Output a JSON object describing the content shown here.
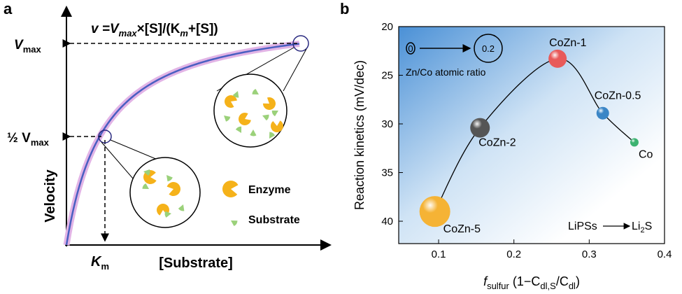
{
  "diagram": {
    "panel_label": "a",
    "equation": [
      "v",
      " =V",
      "max",
      "×[S]/(K",
      "m",
      "+[S])"
    ],
    "vmax_label": [
      "V",
      "max"
    ],
    "half_vmax_label": [
      "½ V",
      "max"
    ],
    "y_axis_label": "Velocity",
    "x_axis_label": "[Substrate]",
    "km_label": [
      "K",
      "m"
    ],
    "legend": [
      "Enzyme",
      "Substrate"
    ]
  },
  "chart_data": {
    "type": "scatter",
    "panel_label": "b",
    "y_axis_label": "Reaction kinetics (mV/dec)",
    "x_axis_label": [
      "f",
      "sulfur",
      " (1−C",
      "dl,S",
      "/C",
      "dl",
      ")"
    ],
    "categories": [
      "CoZn-5",
      "CoZn-2",
      "CoZn-1",
      "CoZn-0.5",
      "Co"
    ],
    "x": [
      0.095,
      0.155,
      0.258,
      0.318,
      0.36
    ],
    "values": [
      39.0,
      30.4,
      23.3,
      28.9,
      31.9
    ],
    "colors": [
      "#f5b335",
      "#555555",
      "#e85a5a",
      "#3b86c6",
      "#3cb371"
    ],
    "label_colors": [
      "#f08a24",
      "#444444",
      "#e8474d",
      "#3b86c6",
      "#3cb371"
    ],
    "marker_sizes": [
      22,
      14,
      13,
      9,
      6
    ],
    "xlim": [
      0.047,
      0.4
    ],
    "ylim": [
      42.3,
      20
    ],
    "xticks": [
      0.1,
      0.2,
      0.3,
      0.4
    ],
    "yticks": [
      20,
      25,
      30,
      35,
      40
    ],
    "annotations": [
      "0",
      "0.2",
      "Zn/Co atomic ratio",
      "LiPSs",
      "Li",
      "2",
      "S"
    ]
  }
}
